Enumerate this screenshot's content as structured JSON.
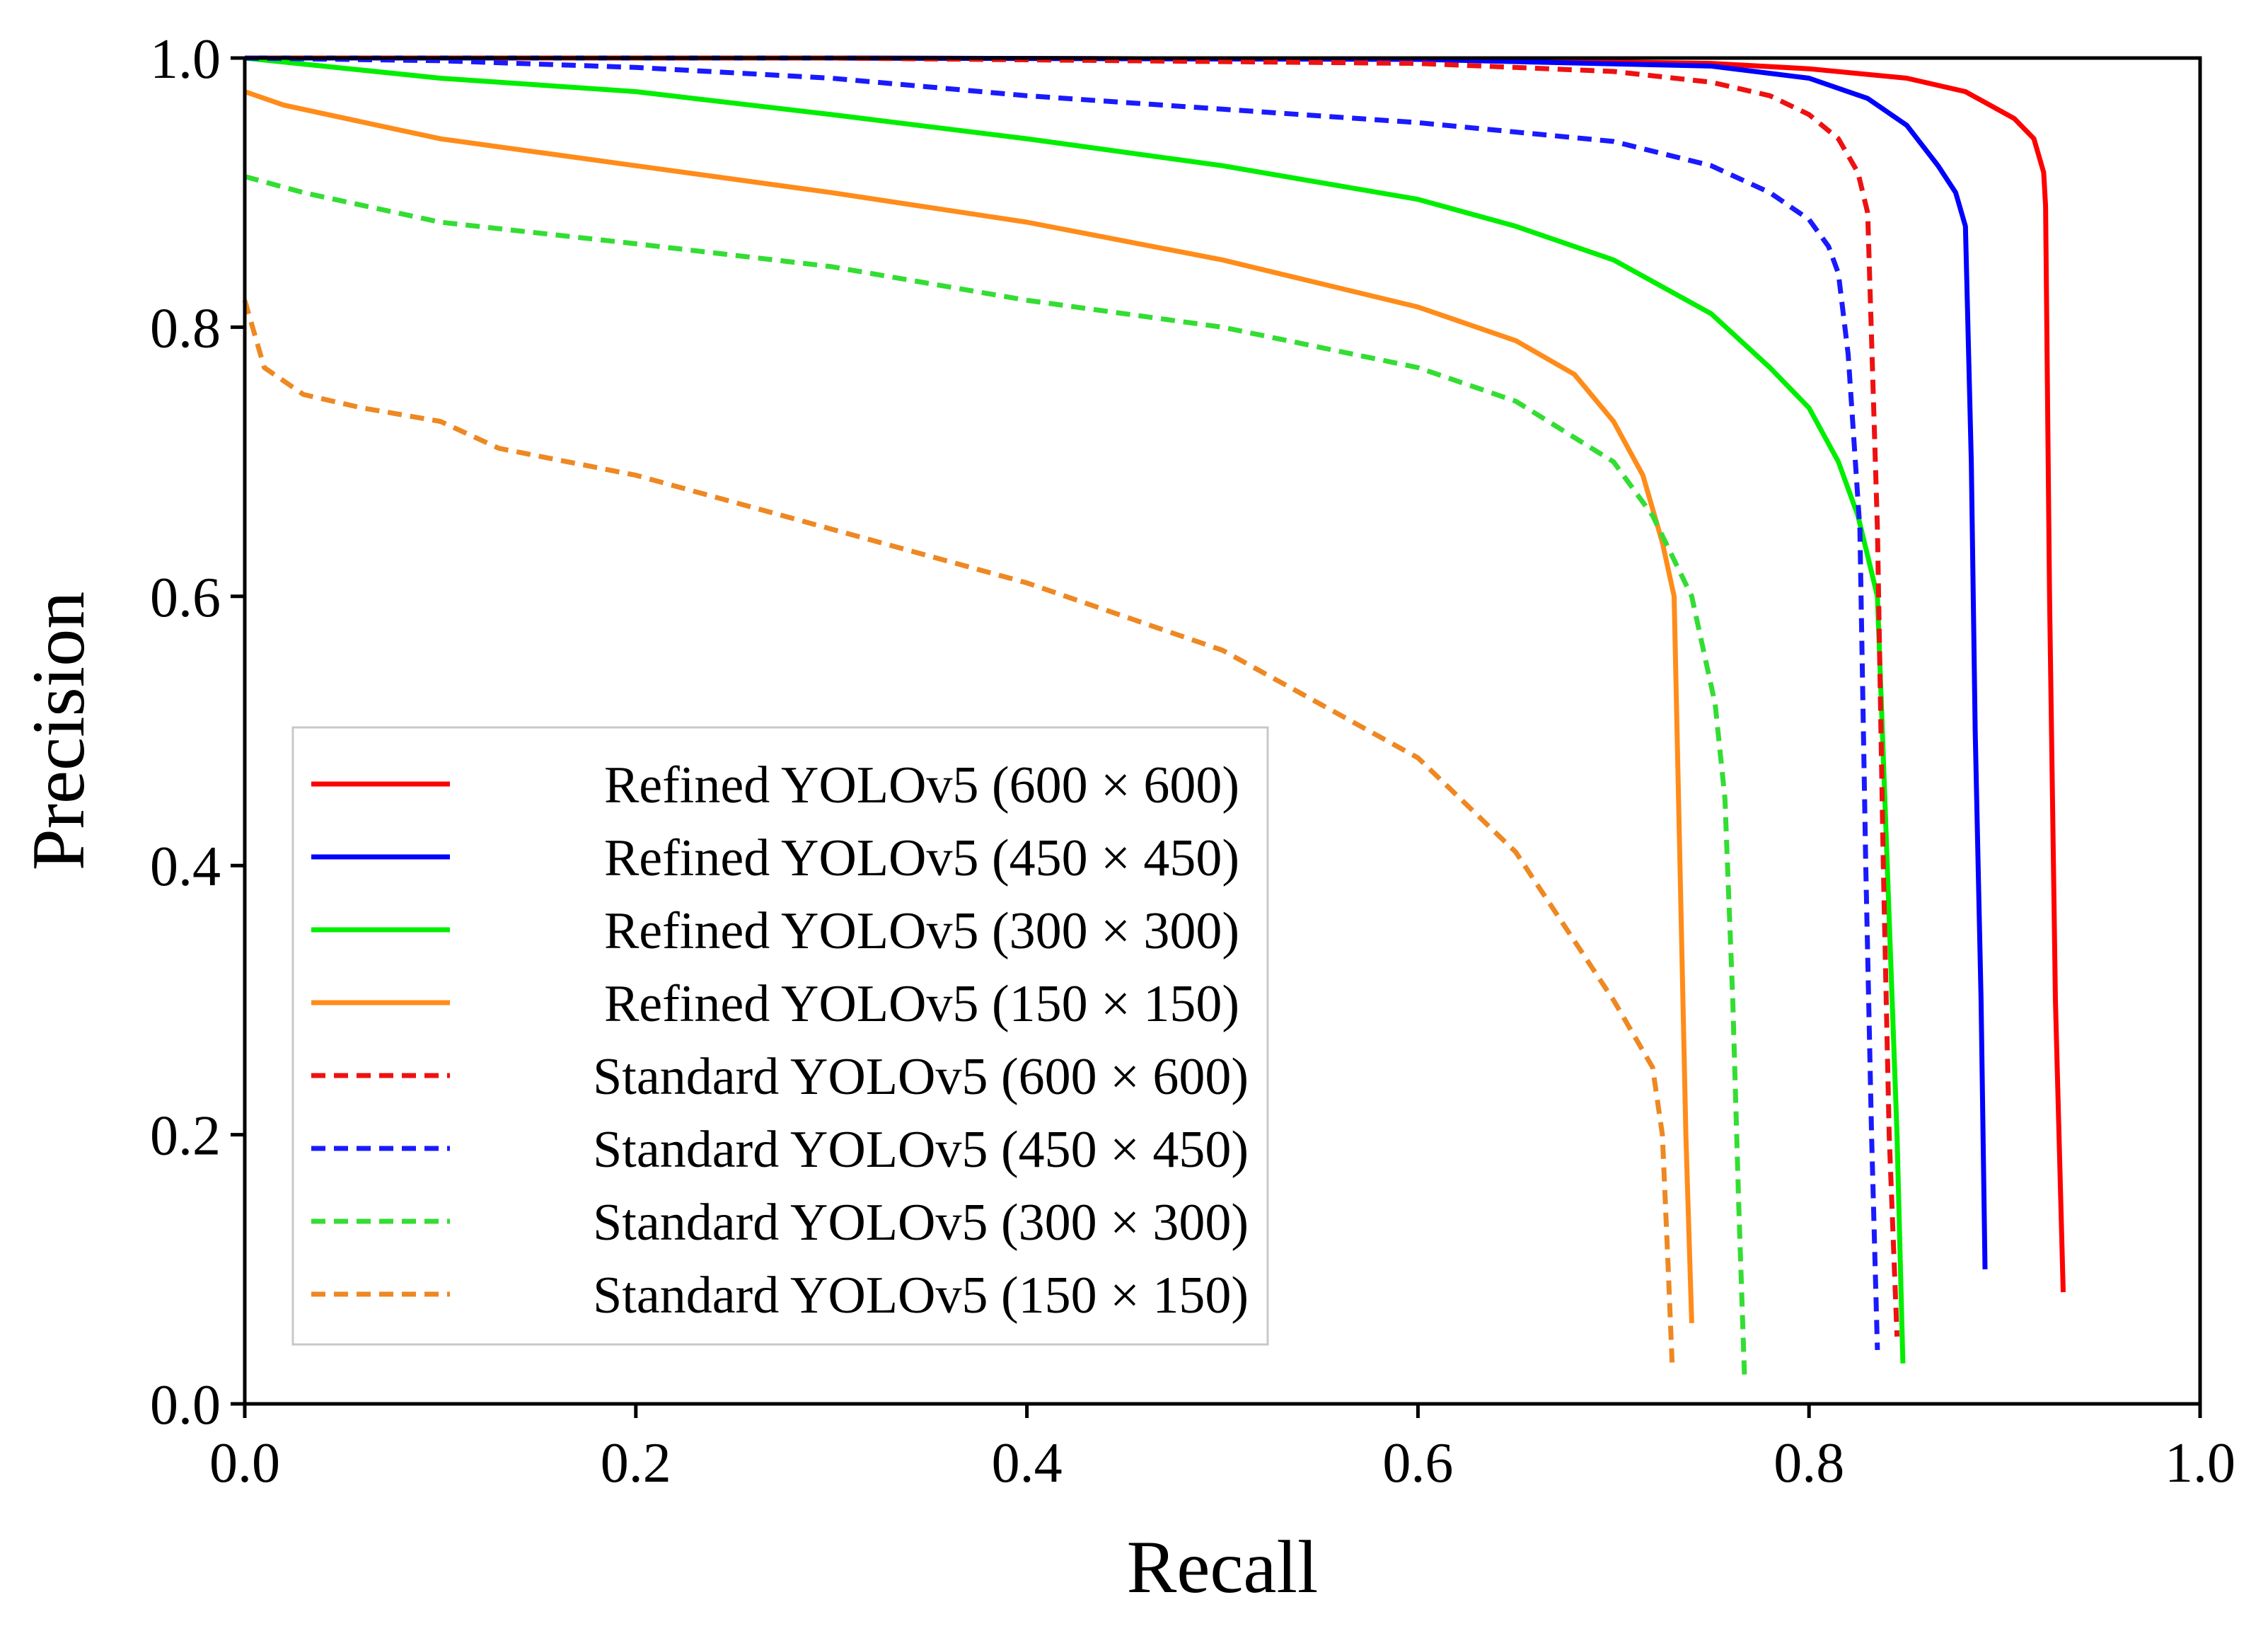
{
  "chart_data": {
    "type": "line",
    "title": "",
    "xlabel": "Recall",
    "ylabel": "Precision",
    "xlim": [
      0,
      1
    ],
    "ylim": [
      0,
      1
    ],
    "xticks": [
      "0.0",
      "0.2",
      "0.4",
      "0.6",
      "0.8",
      "1.0"
    ],
    "yticks": [
      "0.0",
      "0.2",
      "0.4",
      "0.6",
      "0.8",
      "1.0"
    ],
    "grid": false,
    "legend_position": "lower-left",
    "series": [
      {
        "name": "Refined  YOLOv5 (600 × 600)",
        "color": "#ff0000",
        "dash": "solid",
        "x": [
          0.0,
          0.3,
          0.6,
          0.75,
          0.8,
          0.85,
          0.88,
          0.905,
          0.915,
          0.92,
          0.921,
          0.923,
          0.926,
          0.93
        ],
        "y": [
          1.0,
          1.0,
          0.999,
          0.996,
          0.992,
          0.985,
          0.975,
          0.955,
          0.94,
          0.915,
          0.89,
          0.6,
          0.3,
          0.083
        ]
      },
      {
        "name": "Refined  YOLOv5 (450 × 450)",
        "color": "#0000ff",
        "dash": "solid",
        "x": [
          0.0,
          0.3,
          0.6,
          0.75,
          0.8,
          0.83,
          0.85,
          0.866,
          0.875,
          0.88,
          0.883,
          0.885,
          0.888,
          0.89
        ],
        "y": [
          1.0,
          1.0,
          0.999,
          0.994,
          0.985,
          0.97,
          0.95,
          0.92,
          0.9,
          0.875,
          0.7,
          0.5,
          0.3,
          0.1
        ]
      },
      {
        "name": "Refined  YOLOv5 (300 × 300)",
        "color": "#00ee00",
        "dash": "solid",
        "x": [
          0.0,
          0.1,
          0.2,
          0.3,
          0.4,
          0.5,
          0.6,
          0.65,
          0.7,
          0.75,
          0.78,
          0.8,
          0.815,
          0.825,
          0.835,
          0.84,
          0.845,
          0.848
        ],
        "y": [
          1.0,
          0.985,
          0.975,
          0.958,
          0.94,
          0.92,
          0.895,
          0.875,
          0.85,
          0.81,
          0.77,
          0.74,
          0.7,
          0.66,
          0.6,
          0.4,
          0.2,
          0.03
        ]
      },
      {
        "name": "Refined  YOLOv5 (150 × 150)",
        "color": "#ff8c1a",
        "dash": "solid",
        "x": [
          0.0,
          0.02,
          0.1,
          0.2,
          0.3,
          0.4,
          0.5,
          0.6,
          0.65,
          0.68,
          0.7,
          0.715,
          0.725,
          0.731,
          0.734,
          0.737,
          0.74
        ],
        "y": [
          0.975,
          0.965,
          0.94,
          0.92,
          0.9,
          0.878,
          0.85,
          0.815,
          0.79,
          0.765,
          0.73,
          0.69,
          0.64,
          0.6,
          0.4,
          0.2,
          0.06
        ]
      },
      {
        "name": "Standard  YOLOv5 (600 × 600)",
        "color": "#ee1111",
        "dash": "dashed",
        "x": [
          0.0,
          0.3,
          0.6,
          0.7,
          0.75,
          0.78,
          0.8,
          0.815,
          0.825,
          0.83,
          0.835,
          0.838,
          0.841,
          0.845
        ],
        "y": [
          1.0,
          1.0,
          0.996,
          0.99,
          0.982,
          0.972,
          0.958,
          0.94,
          0.915,
          0.885,
          0.65,
          0.4,
          0.2,
          0.05
        ]
      },
      {
        "name": "Standard  YOLOv5 (450 × 450)",
        "color": "#1a1aff",
        "dash": "dashed",
        "x": [
          0.0,
          0.1,
          0.2,
          0.3,
          0.4,
          0.5,
          0.6,
          0.7,
          0.75,
          0.78,
          0.8,
          0.81,
          0.815,
          0.82,
          0.826,
          0.829,
          0.832,
          0.835
        ],
        "y": [
          1.0,
          0.998,
          0.993,
          0.985,
          0.972,
          0.962,
          0.952,
          0.938,
          0.92,
          0.9,
          0.88,
          0.86,
          0.84,
          0.78,
          0.65,
          0.4,
          0.2,
          0.04
        ]
      },
      {
        "name": "Standard  YOLOv5 (300 × 300)",
        "color": "#33dd33",
        "dash": "dashed",
        "x": [
          0.0,
          0.03,
          0.1,
          0.2,
          0.3,
          0.4,
          0.5,
          0.6,
          0.65,
          0.7,
          0.72,
          0.74,
          0.752,
          0.757,
          0.761,
          0.764,
          0.767
        ],
        "y": [
          0.912,
          0.9,
          0.878,
          0.862,
          0.845,
          0.82,
          0.8,
          0.77,
          0.745,
          0.7,
          0.66,
          0.6,
          0.52,
          0.45,
          0.3,
          0.15,
          0.02
        ]
      },
      {
        "name": "Standard  YOLOv5 (150 × 150)",
        "color": "#ee8822",
        "dash": "dashed",
        "x": [
          0.0,
          0.01,
          0.03,
          0.06,
          0.1,
          0.13,
          0.2,
          0.3,
          0.4,
          0.5,
          0.6,
          0.65,
          0.7,
          0.72,
          0.725,
          0.728,
          0.73
        ],
        "y": [
          0.82,
          0.77,
          0.75,
          0.74,
          0.73,
          0.71,
          0.69,
          0.65,
          0.61,
          0.56,
          0.48,
          0.41,
          0.3,
          0.25,
          0.2,
          0.1,
          0.03
        ]
      }
    ]
  }
}
